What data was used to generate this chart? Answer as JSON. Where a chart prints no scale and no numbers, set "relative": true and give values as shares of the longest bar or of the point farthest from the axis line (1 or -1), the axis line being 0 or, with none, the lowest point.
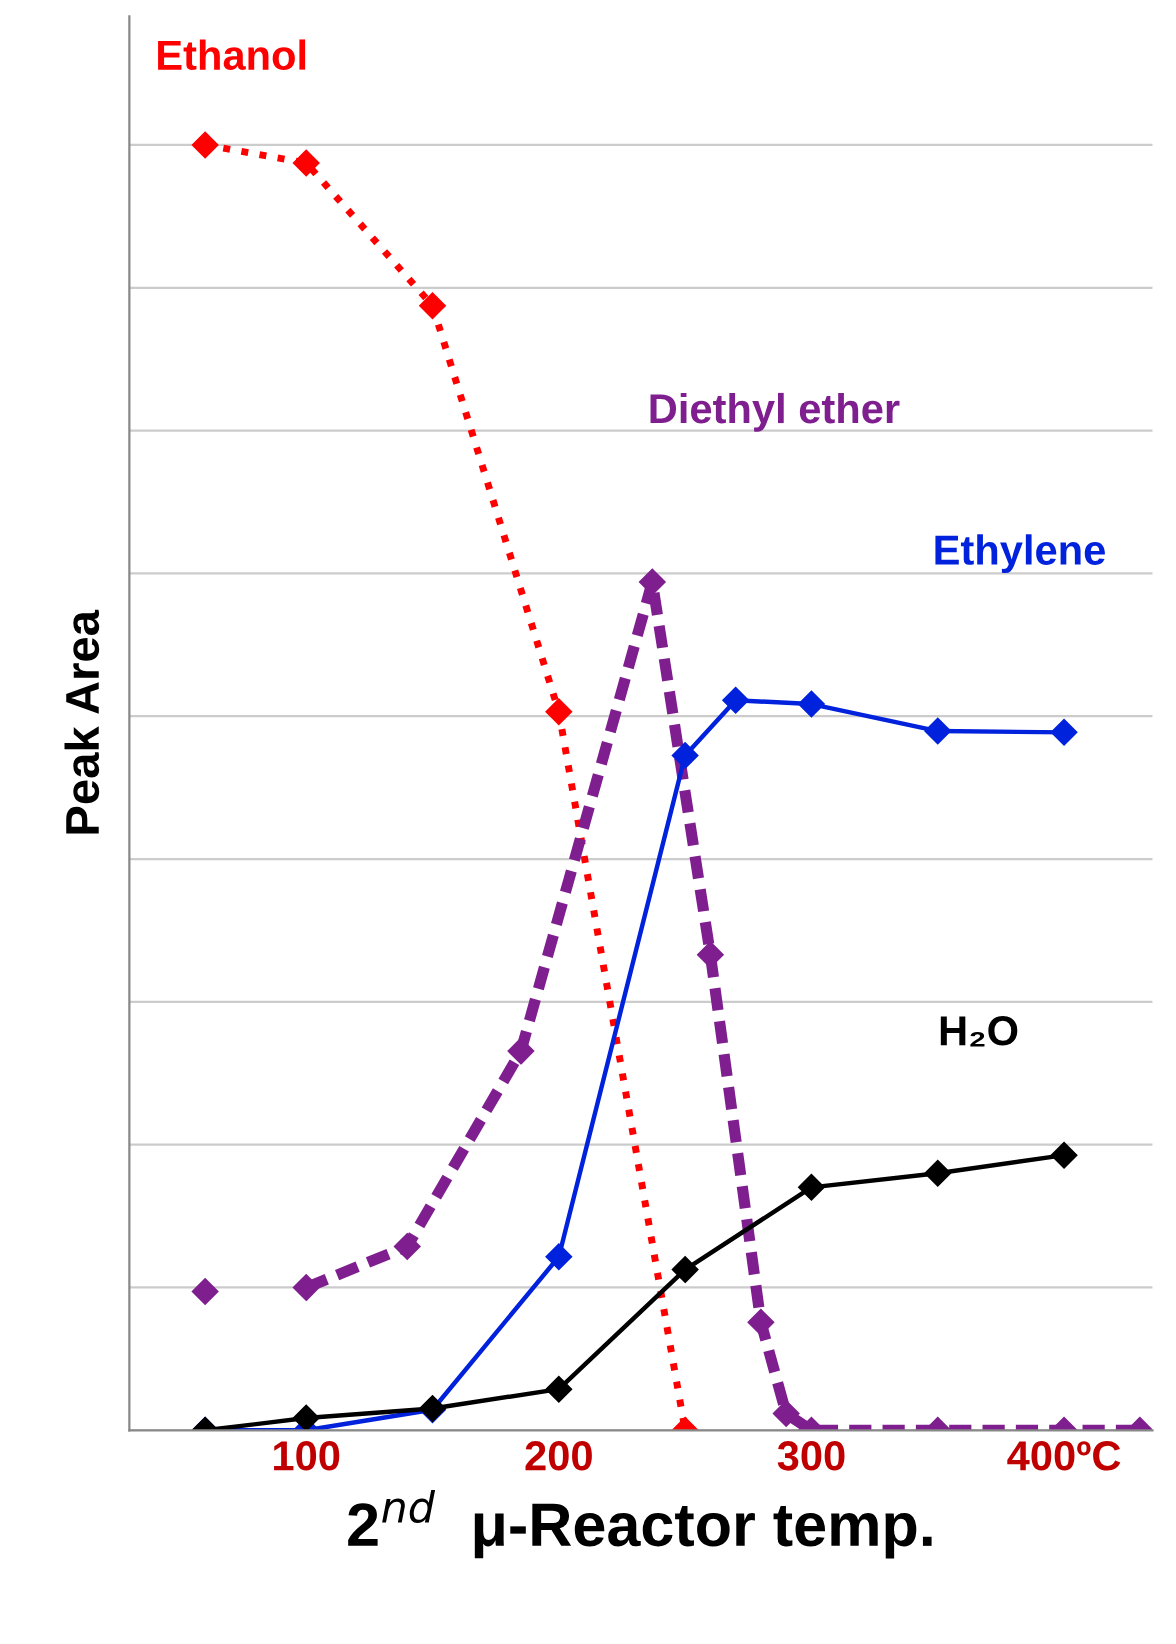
{
  "chart_data": {
    "type": "line",
    "relative": true,
    "xlabel": "2$^{nd}$  μ-Reactor temp.",
    "ylabel": "Peak Area",
    "xlim": [
      30,
      435
    ],
    "xticks": [
      100,
      200,
      300,
      {
        "value": 400,
        "label": "400ºC"
      }
    ],
    "grid": "y",
    "marker": "diamond",
    "series": [
      {
        "name": "Ethanol",
        "color": "#ff0000",
        "line_style": "dotted",
        "x": [
          60,
          100,
          150,
          200,
          250
        ],
        "values": [
          1.0,
          0.986,
          0.875,
          0.559,
          0.0
        ]
      },
      {
        "name": "Diethyl ether",
        "color": "#7f1f8f",
        "line_style": "dashed",
        "x": [
          60,
          80,
          100,
          140,
          185,
          237,
          260,
          280,
          290,
          300,
          350,
          400,
          430
        ],
        "values": [
          0.108,
          null,
          0.111,
          0.143,
          0.295,
          0.66,
          0.37,
          0.084,
          0.013,
          0.0,
          0.0,
          0.0,
          0.0
        ]
      },
      {
        "name": "Ethylene",
        "color": "#0022dd",
        "line_style": "solid",
        "x": [
          60,
          100,
          150,
          200,
          250,
          270,
          300,
          350,
          400
        ],
        "values": [
          0.0,
          0.0,
          0.016,
          0.135,
          0.525,
          0.568,
          0.565,
          0.544,
          0.543
        ]
      },
      {
        "name": "H₂O",
        "color": "#000000",
        "line_style": "solid",
        "x": [
          60,
          100,
          150,
          200,
          250,
          300,
          350,
          400
        ],
        "values": [
          0.0,
          0.0095,
          0.017,
          0.032,
          0.125,
          0.189,
          0.2,
          0.214
        ]
      }
    ]
  }
}
